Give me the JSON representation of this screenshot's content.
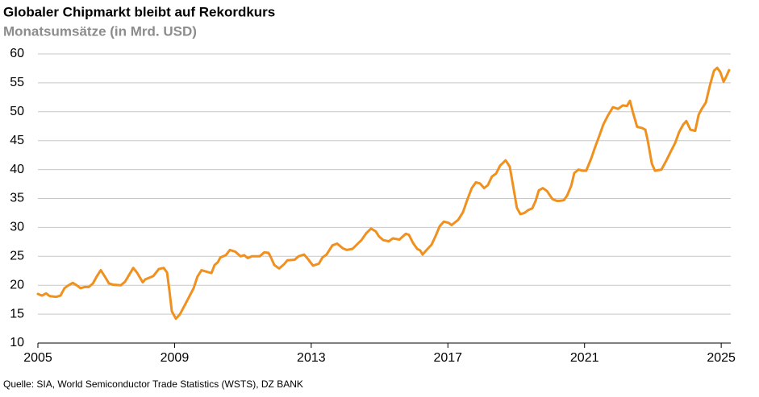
{
  "chart_data": {
    "type": "line",
    "title": "Globaler Chipmarkt bleibt auf Rekordkurs",
    "subtitle": "Monatsumsätze (in Mrd. USD)",
    "source": "Quelle: SIA, World Semiconductor Trade Statistics (WSTS), DZ BANK",
    "xlim": [
      2005,
      2025.28
    ],
    "xticks": [
      2005,
      2009,
      2013,
      2017,
      2021,
      2025
    ],
    "ylim": [
      10,
      60
    ],
    "yticks": [
      10,
      15,
      20,
      25,
      30,
      35,
      40,
      45,
      50,
      55,
      60
    ],
    "grid": true,
    "x": [
      2005.0,
      2005.12,
      2005.24,
      2005.35,
      2005.54,
      2005.66,
      2005.78,
      2005.9,
      2006.02,
      2006.13,
      2006.25,
      2006.37,
      2006.49,
      2006.61,
      2006.72,
      2006.84,
      2006.96,
      2007.08,
      2007.2,
      2007.43,
      2007.55,
      2007.67,
      2007.79,
      2007.9,
      2008.07,
      2008.14,
      2008.38,
      2008.54,
      2008.68,
      2008.78,
      2008.85,
      2008.92,
      2009.04,
      2009.16,
      2009.32,
      2009.56,
      2009.67,
      2009.79,
      2009.96,
      2010.08,
      2010.17,
      2010.27,
      2010.34,
      2010.5,
      2010.62,
      2010.78,
      2010.93,
      2011.04,
      2011.14,
      2011.26,
      2011.49,
      2011.63,
      2011.75,
      2011.82,
      2011.92,
      2012.06,
      2012.2,
      2012.3,
      2012.51,
      2012.63,
      2012.79,
      2012.91,
      2013.05,
      2013.22,
      2013.33,
      2013.45,
      2013.62,
      2013.76,
      2013.92,
      2014.04,
      2014.21,
      2014.33,
      2014.47,
      2014.61,
      2014.75,
      2014.89,
      2014.99,
      2015.11,
      2015.27,
      2015.39,
      2015.58,
      2015.77,
      2015.86,
      2015.98,
      2016.1,
      2016.19,
      2016.26,
      2016.36,
      2016.52,
      2016.64,
      2016.76,
      2016.88,
      2017.02,
      2017.11,
      2017.3,
      2017.44,
      2017.58,
      2017.7,
      2017.82,
      2017.94,
      2018.06,
      2018.17,
      2018.29,
      2018.41,
      2018.53,
      2018.69,
      2018.81,
      2018.93,
      2019.02,
      2019.12,
      2019.24,
      2019.35,
      2019.47,
      2019.57,
      2019.66,
      2019.78,
      2019.9,
      2020.06,
      2020.18,
      2020.28,
      2020.39,
      2020.49,
      2020.61,
      2020.7,
      2020.82,
      2020.94,
      2021.05,
      2021.2,
      2021.31,
      2021.43,
      2021.55,
      2021.69,
      2021.83,
      2021.98,
      2022.12,
      2022.24,
      2022.33,
      2022.42,
      2022.54,
      2022.68,
      2022.78,
      2022.85,
      2022.97,
      2023.06,
      2023.25,
      2023.39,
      2023.53,
      2023.65,
      2023.77,
      2023.89,
      2023.98,
      2024.1,
      2024.24,
      2024.34,
      2024.43,
      2024.55,
      2024.67,
      2024.79,
      2024.88,
      2024.97,
      2025.07,
      2025.14,
      2025.23
    ],
    "series": [
      {
        "name": "Monatsumsätze",
        "color": "#f0901e",
        "values": [
          18.5,
          18.2,
          18.6,
          18.1,
          18.0,
          18.2,
          19.5,
          20.0,
          20.4,
          20.0,
          19.5,
          19.7,
          19.7,
          20.3,
          21.5,
          22.6,
          21.5,
          20.3,
          20.1,
          20.0,
          20.6,
          21.8,
          23.0,
          22.2,
          20.5,
          21.0,
          21.6,
          22.8,
          23.0,
          22.2,
          19.0,
          15.5,
          14.2,
          15.0,
          16.8,
          19.5,
          21.5,
          22.6,
          22.3,
          22.1,
          23.5,
          24.0,
          24.8,
          25.2,
          26.1,
          25.8,
          25.0,
          25.2,
          24.7,
          25.0,
          25.0,
          25.7,
          25.6,
          24.8,
          23.5,
          22.9,
          23.6,
          24.3,
          24.4,
          25.0,
          25.3,
          24.5,
          23.4,
          23.7,
          24.8,
          25.3,
          26.9,
          27.2,
          26.4,
          26.1,
          26.3,
          27.0,
          27.8,
          29.0,
          29.8,
          29.3,
          28.4,
          27.8,
          27.6,
          28.1,
          27.9,
          28.9,
          28.7,
          27.3,
          26.3,
          26.0,
          25.3,
          26.0,
          27.0,
          28.5,
          30.2,
          31.0,
          30.8,
          30.4,
          31.3,
          32.6,
          35.0,
          36.8,
          37.8,
          37.6,
          36.8,
          37.3,
          38.8,
          39.3,
          40.7,
          41.6,
          40.5,
          36.5,
          33.4,
          32.3,
          32.5,
          33.0,
          33.3,
          34.6,
          36.4,
          36.8,
          36.3,
          34.9,
          34.6,
          34.6,
          34.7,
          35.5,
          37.2,
          39.4,
          40.0,
          39.8,
          39.8,
          42.0,
          43.9,
          45.8,
          47.8,
          49.4,
          50.8,
          50.5,
          51.1,
          51.0,
          51.9,
          49.8,
          47.4,
          47.2,
          46.9,
          45.0,
          41.0,
          39.8,
          40.0,
          41.5,
          43.2,
          44.6,
          46.5,
          47.8,
          48.4,
          46.9,
          46.7,
          49.5,
          50.5,
          51.6,
          54.6,
          57.1,
          57.6,
          56.9,
          55.2,
          56.0,
          57.2
        ]
      }
    ]
  }
}
